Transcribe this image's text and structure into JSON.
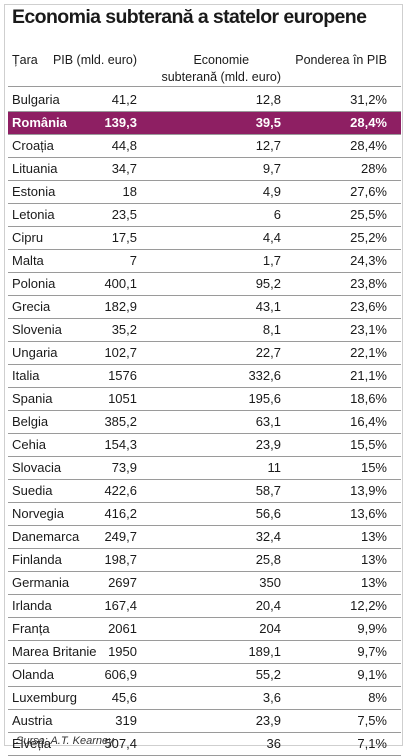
{
  "title": "Economia subterană a statelor europene",
  "columns": {
    "country": "Țara",
    "gdp": "PIB (mld. euro)",
    "underground_line1": "Economie",
    "underground_line2": "subterană (mld. euro)",
    "share": "Ponderea în PIB"
  },
  "highlight_color": "#8e1f63",
  "rows": [
    {
      "country": "Bulgaria",
      "gdp": "41,2",
      "underground": "12,8",
      "share": "31,2%"
    },
    {
      "country": "România",
      "gdp": "139,3",
      "underground": "39,5",
      "share": "28,4%",
      "highlight": true
    },
    {
      "country": "Croația",
      "gdp": "44,8",
      "underground": "12,7",
      "share": "28,4%"
    },
    {
      "country": "Lituania",
      "gdp": "34,7",
      "underground": "9,7",
      "share": "28%"
    },
    {
      "country": "Estonia",
      "gdp": "18",
      "underground": "4,9",
      "share": "27,6%"
    },
    {
      "country": "Letonia",
      "gdp": "23,5",
      "underground": "6",
      "share": "25,5%"
    },
    {
      "country": "Cipru",
      "gdp": "17,5",
      "underground": "4,4",
      "share": "25,2%"
    },
    {
      "country": "Malta",
      "gdp": "7",
      "underground": "1,7",
      "share": "24,3%"
    },
    {
      "country": "Polonia",
      "gdp": "400,1",
      "underground": "95,2",
      "share": "23,8%"
    },
    {
      "country": "Grecia",
      "gdp": "182,9",
      "underground": "43,1",
      "share": "23,6%"
    },
    {
      "country": "Slovenia",
      "gdp": "35,2",
      "underground": "8,1",
      "share": "23,1%"
    },
    {
      "country": "Ungaria",
      "gdp": "102,7",
      "underground": "22,7",
      "share": "22,1%"
    },
    {
      "country": "Italia",
      "gdp": "1576",
      "underground": "332,6",
      "share": "21,1%"
    },
    {
      "country": "Spania",
      "gdp": "1051",
      "underground": "195,6",
      "share": "18,6%"
    },
    {
      "country": "Belgia",
      "gdp": "385,2",
      "underground": "63,1",
      "share": "16,4%"
    },
    {
      "country": "Cehia",
      "gdp": "154,3",
      "underground": "23,9",
      "share": "15,5%"
    },
    {
      "country": "Slovacia",
      "gdp": "73,9",
      "underground": "11",
      "share": "15%"
    },
    {
      "country": "Suedia",
      "gdp": "422,6",
      "underground": "58,7",
      "share": "13,9%"
    },
    {
      "country": "Norvegia",
      "gdp": "416,2",
      "underground": "56,6",
      "share": "13,6%"
    },
    {
      "country": "Danemarca",
      "gdp": "249,7",
      "underground": "32,4",
      "share": "13%"
    },
    {
      "country": "Finlanda",
      "gdp": "198,7",
      "underground": "25,8",
      "share": "13%"
    },
    {
      "country": "Germania",
      "gdp": "2697",
      "underground": "350",
      "share": "13%"
    },
    {
      "country": "Irlanda",
      "gdp": "167,4",
      "underground": "20,4",
      "share": "12,2%"
    },
    {
      "country": "Franța",
      "gdp": "2061",
      "underground": "204",
      "share": "9,9%"
    },
    {
      "country": "Marea Britanie",
      "gdp": "1950",
      "underground": "189,1",
      "share": "9,7%"
    },
    {
      "country": "Olanda",
      "gdp": "606,9",
      "underground": "55,2",
      "share": "9,1%"
    },
    {
      "country": "Luxemburg",
      "gdp": "45,6",
      "underground": "3,6",
      "share": "8%"
    },
    {
      "country": "Austria",
      "gdp": "319",
      "underground": "23,9",
      "share": "7,5%"
    },
    {
      "country": "Elveția",
      "gdp": "507,4",
      "underground": "36",
      "share": "7,1%"
    }
  ],
  "source": "Sursa: A.T. Kearney"
}
